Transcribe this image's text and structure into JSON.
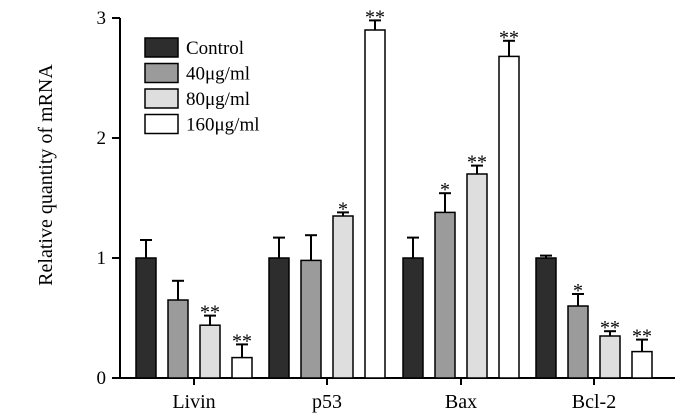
{
  "chart_data": {
    "type": "bar",
    "title": "",
    "xlabel": "",
    "ylabel": "Relative quantity of mRNA",
    "ylim": [
      0,
      3
    ],
    "yticks": [
      "0",
      "1",
      "2",
      "3"
    ],
    "categories": [
      "Livin",
      "p53",
      "Bax",
      "Bcl-2"
    ],
    "legend_position": "top-left",
    "series": [
      {
        "name": "Control",
        "color": "#2d2d2d",
        "values": [
          1.0,
          1.0,
          1.0,
          1.0
        ],
        "errors": [
          0.15,
          0.17,
          0.17,
          0.02
        ],
        "sig": [
          "",
          "",
          "",
          ""
        ]
      },
      {
        "name": "40μg/ml",
        "color": "#9b9b9b",
        "values": [
          0.65,
          0.98,
          1.38,
          0.6
        ],
        "errors": [
          0.16,
          0.21,
          0.16,
          0.1
        ],
        "sig": [
          "",
          "",
          "*",
          "*"
        ]
      },
      {
        "name": "80μg/ml",
        "color": "#dedede",
        "values": [
          0.44,
          1.35,
          1.7,
          0.35
        ],
        "errors": [
          0.08,
          0.03,
          0.07,
          0.04
        ],
        "sig": [
          "**",
          "*",
          "**",
          "**"
        ]
      },
      {
        "name": "160μg/ml",
        "color": "#ffffff",
        "values": [
          0.17,
          2.9,
          2.68,
          0.22
        ],
        "errors": [
          0.11,
          0.08,
          0.13,
          0.1
        ],
        "sig": [
          "**",
          "**",
          "**",
          "**"
        ]
      }
    ]
  }
}
